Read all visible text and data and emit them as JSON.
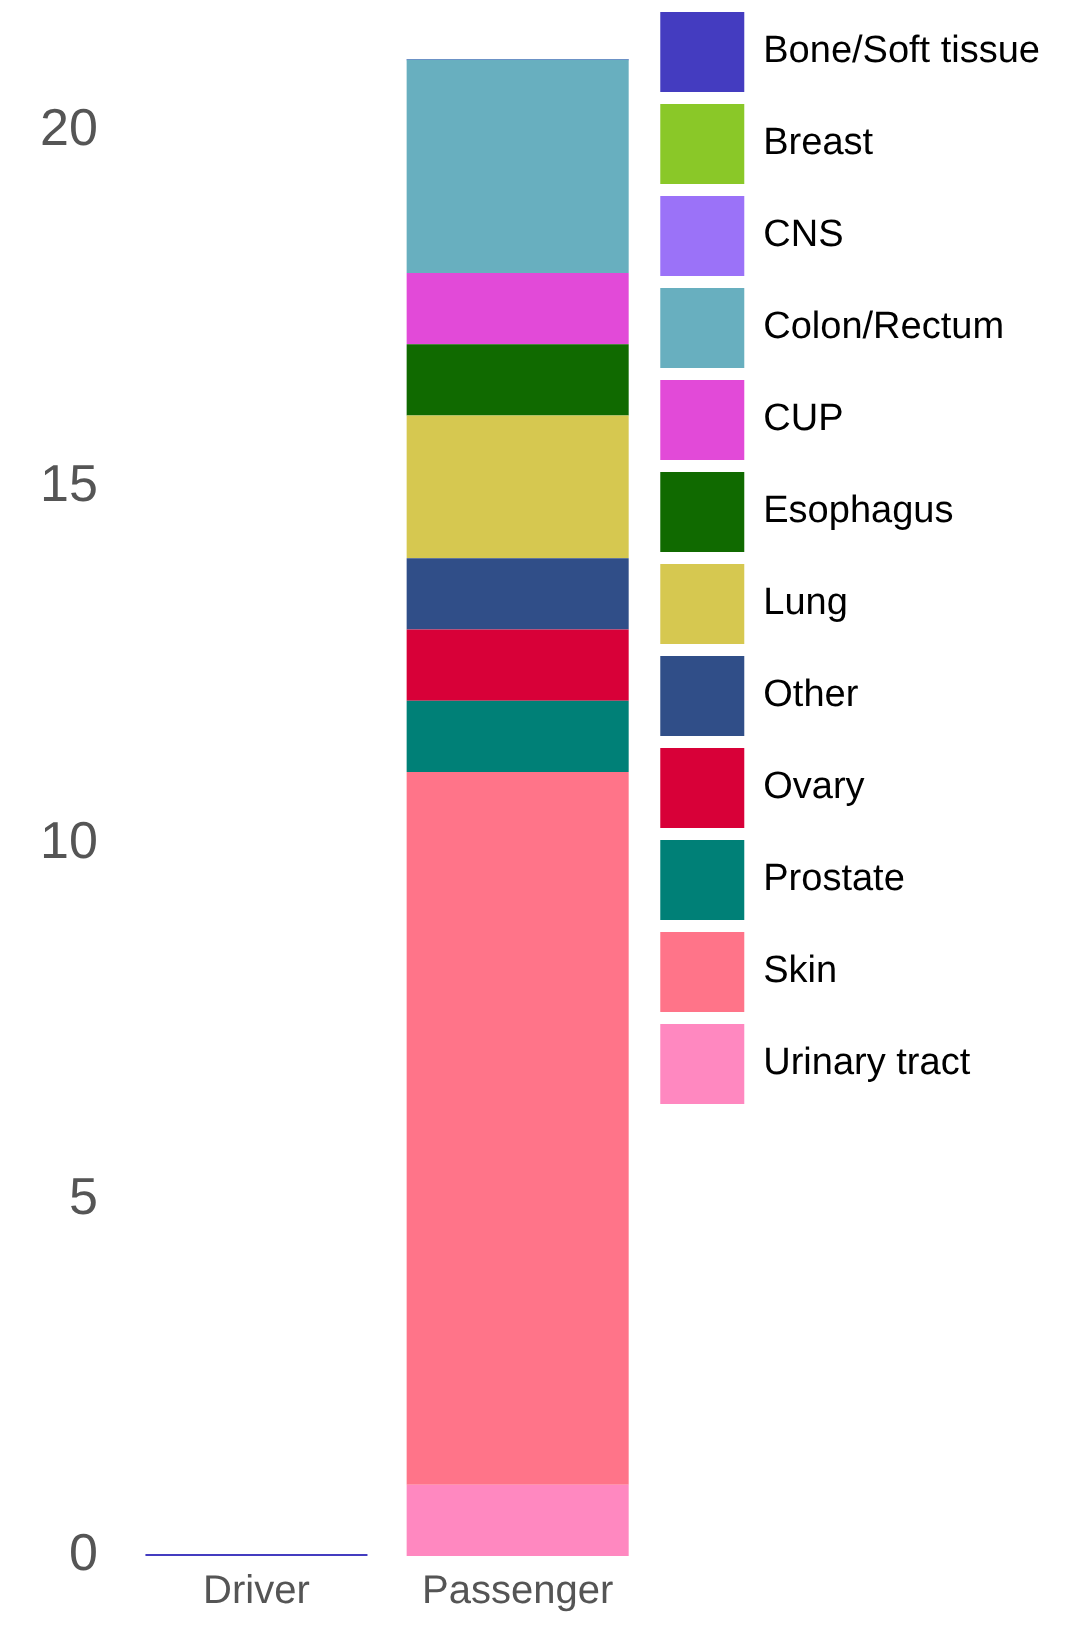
{
  "chart_data": {
    "type": "bar",
    "stacked": true,
    "categories": [
      "Driver",
      "Passenger"
    ],
    "ylim": [
      0,
      21
    ],
    "yticks": [
      0,
      5,
      10,
      15,
      20
    ],
    "grid": false,
    "legend": "top right",
    "series": [
      {
        "name": "Urinary tract",
        "color": "#ff88c0",
        "values": [
          0,
          1
        ]
      },
      {
        "name": "Skin",
        "color": "#ff7489",
        "values": [
          0,
          10
        ]
      },
      {
        "name": "Prostate",
        "color": "#008077",
        "values": [
          0,
          1
        ]
      },
      {
        "name": "Ovary",
        "color": "#d80038",
        "values": [
          0,
          1
        ]
      },
      {
        "name": "Other",
        "color": "#304e88",
        "values": [
          0,
          1
        ]
      },
      {
        "name": "Lung",
        "color": "#d6c850",
        "values": [
          0,
          2
        ]
      },
      {
        "name": "Esophagus",
        "color": "#106a00",
        "values": [
          0,
          1
        ]
      },
      {
        "name": "CUP",
        "color": "#e24ad8",
        "values": [
          0,
          1
        ]
      },
      {
        "name": "Colon/Rectum",
        "color": "#68afbf",
        "values": [
          0,
          3
        ]
      },
      {
        "name": "CNS",
        "color": "#9b72f8",
        "values": [
          0,
          0
        ]
      },
      {
        "name": "Breast",
        "color": "#8ac828",
        "values": [
          0,
          0
        ]
      },
      {
        "name": "Bone/Soft tissue",
        "color": "#443cc0",
        "values": [
          0,
          0
        ]
      }
    ]
  }
}
